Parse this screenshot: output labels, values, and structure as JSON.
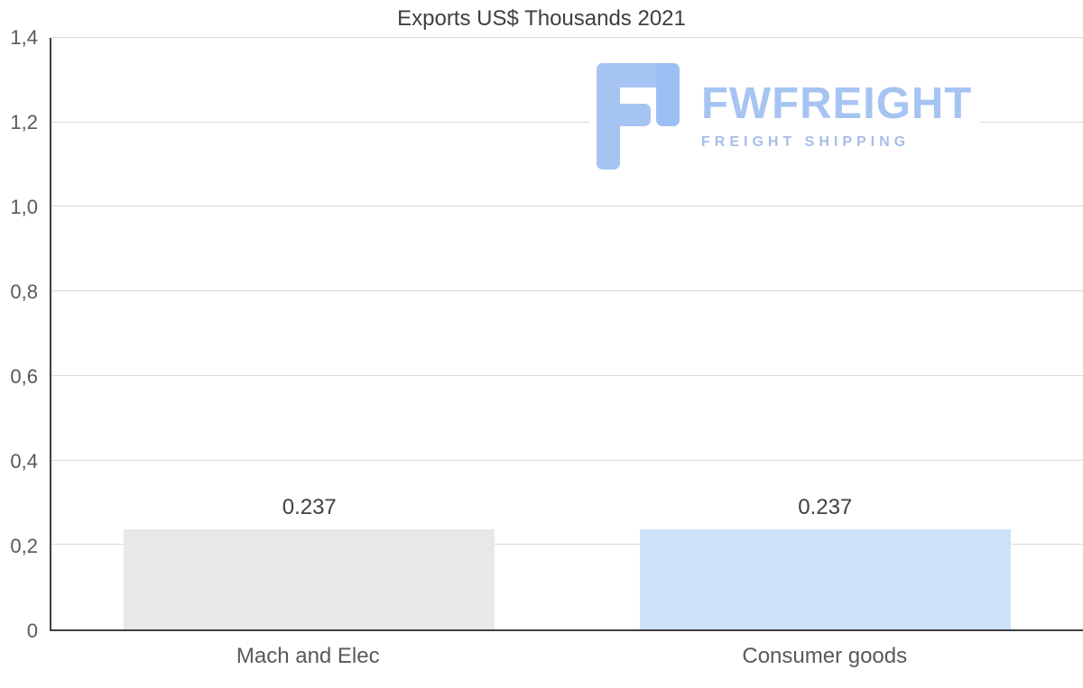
{
  "watermark": {
    "name": "FWFREIGHT",
    "tagline": "FREIGHT SHIPPING",
    "brand_color": "#a6c4f2",
    "tagline_color": "#a9bde9"
  },
  "chart_data": {
    "type": "bar",
    "title": "Exports US$ Thousands 2021",
    "categories": [
      "Mach and Elec",
      "Consumer goods"
    ],
    "values": [
      0.237,
      0.237
    ],
    "value_labels": [
      "0.237",
      "0.237"
    ],
    "bar_colors": [
      "#e8e8e8",
      "#cde2f8"
    ],
    "xlabel": "",
    "ylabel": "",
    "ylim": [
      0,
      1.4
    ],
    "yticks": [
      {
        "label": "0",
        "value": 0
      },
      {
        "label": "0,2",
        "value": 0.2
      },
      {
        "label": "0,4",
        "value": 0.4
      },
      {
        "label": "0,6",
        "value": 0.6
      },
      {
        "label": "0,8",
        "value": 0.8
      },
      {
        "label": "1,0",
        "value": 1.0
      },
      {
        "label": "1,2",
        "value": 1.2
      },
      {
        "label": "1,4",
        "value": 1.4
      }
    ],
    "grid": true,
    "legend": false,
    "axis_color": "#404040",
    "gridline_color": "#d9d9d9"
  }
}
